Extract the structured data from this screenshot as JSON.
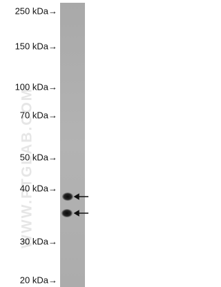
{
  "markers": [
    {
      "label": "250 kDa→"
    },
    {
      "label": "150 kDa→"
    },
    {
      "label": "100 kDa→"
    },
    {
      "label": "70 kDa→"
    },
    {
      "label": "50 kDa→"
    },
    {
      "label": "40 kDa→"
    },
    {
      "label": "30 kDa→"
    },
    {
      "label": "20 kDa→"
    }
  ],
  "watermark": "WWW.PTGLAB.COM"
}
